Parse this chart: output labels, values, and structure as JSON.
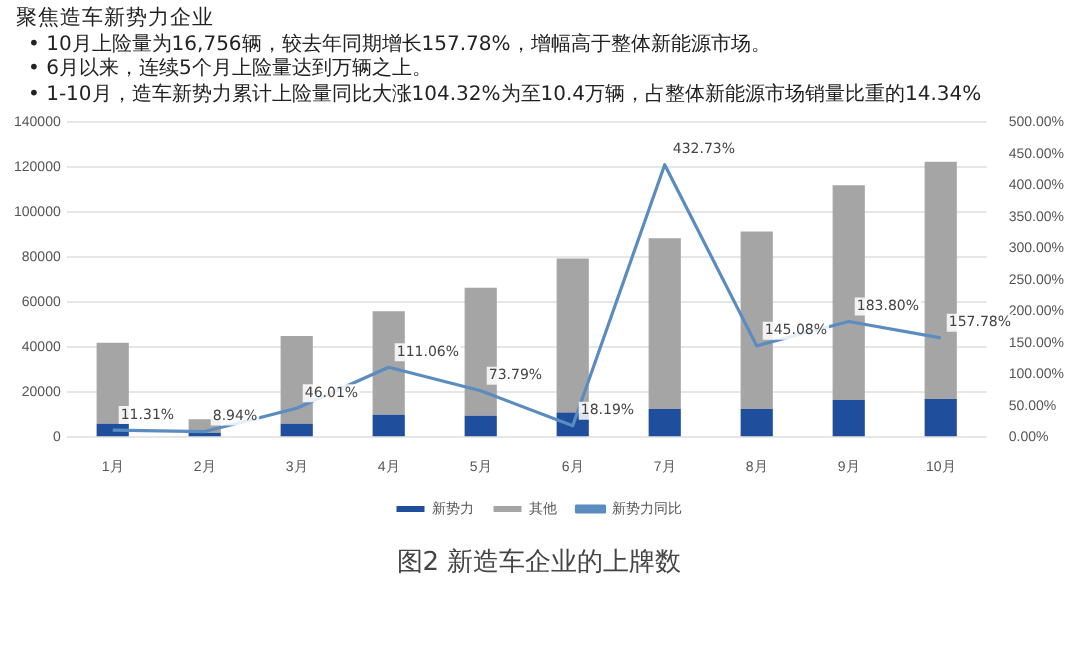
{
  "chart_data": {
    "type": "bar",
    "title": "聚焦造车新势力企业",
    "annotations": [
      "•  10月上险量为16,756辆，较去年同期增长157.78%，增幅高于整体新能源市场。",
      "•  6月以来，连续5个月上险量达到万辆之上。",
      "•  1-10月，造车新势力累计上险量同比大涨104.32%为至10.4万辆，占整体新能源市场销量比重的14.34%",
      "图2  新造车企业的上牌数"
    ],
    "categories": [
      "1月",
      "2月",
      "3月",
      "4月",
      "5月",
      "6月",
      "7月",
      "8月",
      "9月",
      "10月"
    ],
    "stacked": true,
    "series": [
      {
        "name": "新势力",
        "color": "#1f4e9c",
        "values": [
          6000,
          2000,
          6000,
          10000,
          9500,
          11000,
          12500,
          12500,
          16500,
          17000
        ]
      },
      {
        "name": "其他",
        "color": "#a5a5a5",
        "values": [
          36000,
          6000,
          39000,
          46000,
          57000,
          68500,
          76000,
          79000,
          95500,
          105500
        ]
      },
      {
        "name": "新势力同比",
        "type": "line",
        "axis": "y2",
        "color": "#5b8cc0",
        "marker": "none",
        "values": [
          11.31,
          8.94,
          46.01,
          111.06,
          73.79,
          18.19,
          432.73,
          145.08,
          183.8,
          157.78
        ],
        "value_labels": [
          "11.31%",
          "8.94%",
          "46.01%",
          "111.06%",
          "73.79%",
          "18.19%",
          "432.73%",
          "145.08%",
          "183.80%",
          "157.78%"
        ]
      }
    ],
    "ylim": [
      0,
      140000
    ],
    "yticks": [
      0,
      20000,
      40000,
      60000,
      80000,
      100000,
      120000,
      140000
    ],
    "y2lim": [
      0,
      500
    ],
    "y2ticks": [
      {
        "value": 0,
        "label": "0.00%"
      },
      {
        "value": 50,
        "label": "50.00%"
      },
      {
        "value": 100,
        "label": "100.00%"
      },
      {
        "value": 150,
        "label": "150.00%"
      },
      {
        "value": 200,
        "label": "200.00%"
      },
      {
        "value": 250,
        "label": "250.00%"
      },
      {
        "value": 300,
        "label": "300.00%"
      },
      {
        "value": 350,
        "label": "350.00%"
      },
      {
        "value": 400,
        "label": "400.00%"
      },
      {
        "value": 450,
        "label": "450.00%"
      },
      {
        "value": 500,
        "label": "500.00%"
      }
    ],
    "grid": "y",
    "legend": "bottom"
  }
}
